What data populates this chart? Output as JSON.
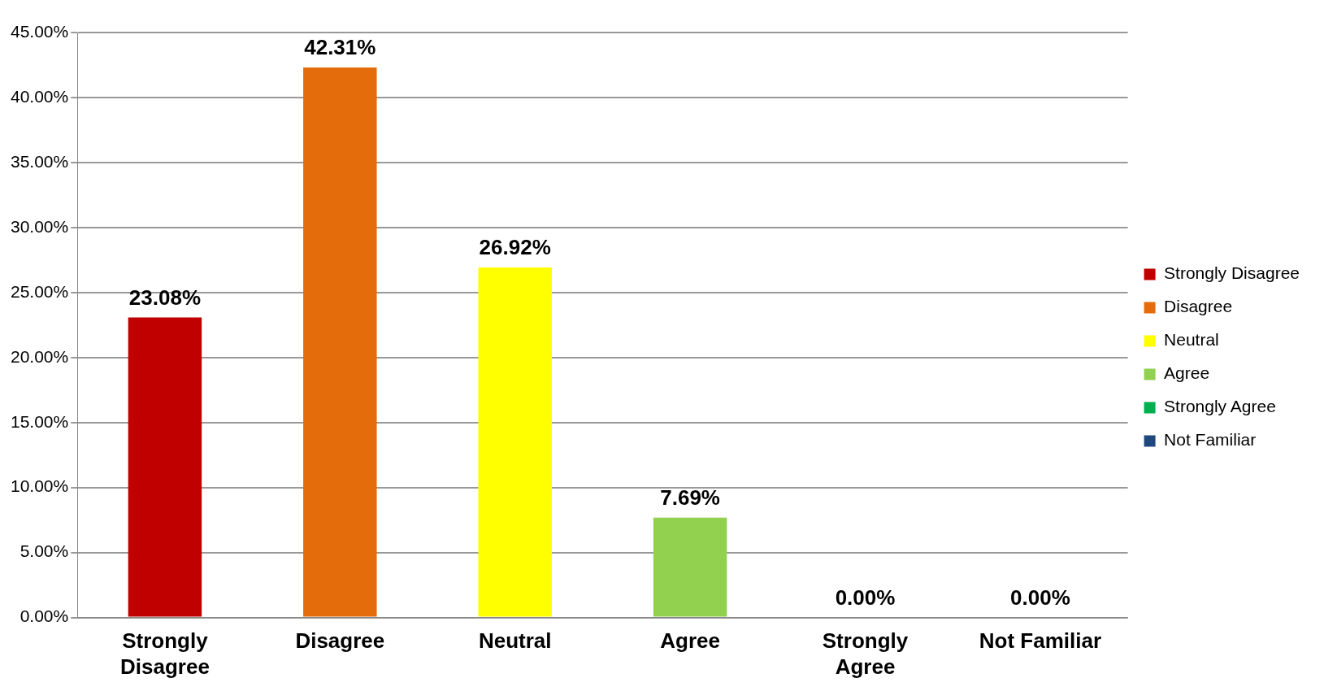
{
  "chart_data": {
    "type": "bar",
    "categories": [
      "Strongly Disagree",
      "Disagree",
      "Neutral",
      "Agree",
      "Strongly Agree",
      "Not Familiar"
    ],
    "series": [
      {
        "name": "Strongly Disagree",
        "color": "#c00000",
        "values": [
          23.08,
          null,
          null,
          null,
          null,
          null
        ],
        "value_labels": [
          "23.08%",
          null,
          null,
          null,
          null,
          null
        ]
      },
      {
        "name": "Disagree",
        "color": "#e46c0a",
        "values": [
          null,
          42.31,
          null,
          null,
          null,
          null
        ],
        "value_labels": [
          null,
          "42.31%",
          null,
          null,
          null,
          null
        ]
      },
      {
        "name": "Neutral",
        "color": "#ffff00",
        "values": [
          null,
          null,
          26.92,
          null,
          null,
          null
        ],
        "value_labels": [
          null,
          null,
          "26.92%",
          null,
          null,
          null
        ]
      },
      {
        "name": "Agree",
        "color": "#92d050",
        "values": [
          null,
          null,
          null,
          7.69,
          null,
          null
        ],
        "value_labels": [
          null,
          null,
          null,
          "7.69%",
          null,
          null
        ]
      },
      {
        "name": "Strongly Agree",
        "color": "#00b050",
        "values": [
          null,
          null,
          null,
          null,
          0.0,
          null
        ],
        "value_labels": [
          null,
          null,
          null,
          null,
          "0.00%",
          null
        ]
      },
      {
        "name": "Not Familiar",
        "color": "#1f497d",
        "values": [
          null,
          null,
          null,
          null,
          null,
          0.0
        ],
        "value_labels": [
          null,
          null,
          null,
          null,
          null,
          "0.00%"
        ]
      }
    ],
    "ylim": [
      0,
      45
    ],
    "yticks": [
      {
        "value": 0,
        "label": "0.00%"
      },
      {
        "value": 5,
        "label": "5.00%"
      },
      {
        "value": 10,
        "label": "10.00%"
      },
      {
        "value": 15,
        "label": "15.00%"
      },
      {
        "value": 20,
        "label": "20.00%"
      },
      {
        "value": 25,
        "label": "25.00%"
      },
      {
        "value": 30,
        "label": "30.00%"
      },
      {
        "value": 35,
        "label": "35.00%"
      },
      {
        "value": 40,
        "label": "40.00%"
      },
      {
        "value": 45,
        "label": "45.00%"
      }
    ],
    "grid": "y",
    "legend": "right"
  }
}
